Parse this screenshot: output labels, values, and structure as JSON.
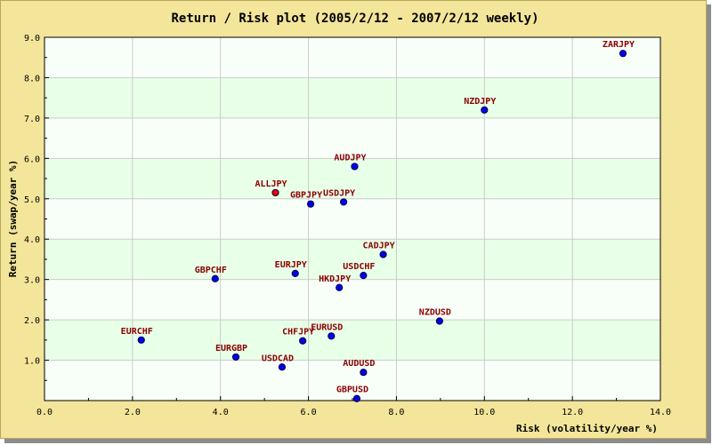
{
  "chart_data": {
    "type": "scatter",
    "title": "Return / Risk plot (2005/2/12 - 2007/2/12 weekly)",
    "xlabel": "Risk (volatility/year %)",
    "ylabel": "Return (swap/year %)",
    "xlim": [
      0,
      14
    ],
    "ylim": [
      0,
      9
    ],
    "xticks": [
      "0.0",
      "2.0",
      "4.0",
      "6.0",
      "8.0",
      "10.0",
      "12.0",
      "14.0"
    ],
    "yticks": [
      "1.0",
      "2.0",
      "3.0",
      "4.0",
      "5.0",
      "6.0",
      "7.0",
      "8.0",
      "9.0"
    ],
    "grid": true,
    "points": [
      {
        "label": "ZARJPY",
        "x": 13.15,
        "y": 8.6,
        "color": "#0000ee"
      },
      {
        "label": "NZDJPY",
        "x": 10.0,
        "y": 7.2,
        "color": "#0000ee"
      },
      {
        "label": "AUDJPY",
        "x": 7.05,
        "y": 5.8,
        "color": "#0000ee"
      },
      {
        "label": "ALLJPY",
        "x": 5.25,
        "y": 5.15,
        "color": "#ee0000"
      },
      {
        "label": "GBPJPY",
        "x": 6.05,
        "y": 4.87,
        "color": "#0000ee"
      },
      {
        "label": "USDJPY",
        "x": 6.8,
        "y": 4.92,
        "color": "#0000ee"
      },
      {
        "label": "CADJPY",
        "x": 7.7,
        "y": 3.62,
        "color": "#0000ee"
      },
      {
        "label": "GBPCHF",
        "x": 3.88,
        "y": 3.02,
        "color": "#0000ee"
      },
      {
        "label": "EURJPY",
        "x": 5.7,
        "y": 3.15,
        "color": "#0000ee"
      },
      {
        "label": "USDCHF",
        "x": 7.25,
        "y": 3.1,
        "color": "#0000ee"
      },
      {
        "label": "HKDJPY",
        "x": 6.7,
        "y": 2.8,
        "color": "#0000ee"
      },
      {
        "label": "NZDUSD",
        "x": 8.98,
        "y": 1.97,
        "color": "#0000ee"
      },
      {
        "label": "EURCHF",
        "x": 2.2,
        "y": 1.5,
        "color": "#0000ee"
      },
      {
        "label": "EURUSD",
        "x": 6.52,
        "y": 1.6,
        "color": "#0000ee"
      },
      {
        "label": "CHFJPY",
        "x": 5.87,
        "y": 1.48,
        "color": "#0000ee"
      },
      {
        "label": "EURGBP",
        "x": 4.35,
        "y": 1.08,
        "color": "#0000ee"
      },
      {
        "label": "USDCAD",
        "x": 5.4,
        "y": 0.83,
        "color": "#0000ee"
      },
      {
        "label": "AUDUSD",
        "x": 7.25,
        "y": 0.7,
        "color": "#0000ee"
      },
      {
        "label": "GBPUSD",
        "x": 7.1,
        "y": 0.05,
        "color": "#0000ee"
      }
    ]
  },
  "colors": {
    "frame_background": "#f3e59a",
    "plot_band_light": "#f8fff8",
    "plot_band_green": "#e8ffe8",
    "grid": "#cccccc",
    "label_color": "#8b0000",
    "point_outline": "#000044"
  }
}
